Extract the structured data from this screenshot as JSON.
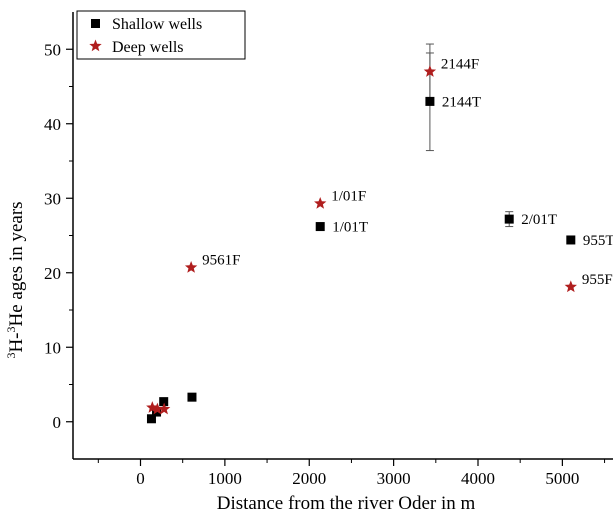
{
  "chart_data": {
    "type": "scatter",
    "xlabel": "Distance from the river Oder in m",
    "ylabel_parts": [
      "3",
      "H-",
      "3",
      "He ages in years"
    ],
    "xlim": [
      -800,
      5600
    ],
    "ylim": [
      -5,
      55
    ],
    "x_ticks": [
      0,
      1000,
      2000,
      3000,
      4000,
      5000
    ],
    "y_ticks": [
      0,
      10,
      20,
      30,
      40,
      50
    ],
    "x_tick_labels": [
      "0",
      "1000",
      "2000",
      "3000",
      "4000",
      "5000"
    ],
    "y_tick_labels": [
      "0",
      "10",
      "20",
      "30",
      "40",
      "50"
    ],
    "legend_position": "top-left",
    "colors": {
      "shallow": "#000000",
      "deep": "#b01e1e",
      "errorbar": "#555555"
    },
    "series": [
      {
        "name": "Shallow wells",
        "marker": "square",
        "points": [
          {
            "x": 130,
            "y": 0.4,
            "label": ""
          },
          {
            "x": 190,
            "y": 1.3,
            "label": ""
          },
          {
            "x": 275,
            "y": 2.7,
            "label": "",
            "err": 0.4
          },
          {
            "x": 610,
            "y": 3.3,
            "label": "",
            "err": 0.5
          },
          {
            "x": 2130,
            "y": 26.2,
            "label": "1/01T"
          },
          {
            "x": 3430,
            "y": 43.0,
            "label": "2144T",
            "err_low": 6.6,
            "err_high": 6.5
          },
          {
            "x": 4370,
            "y": 27.2,
            "label": "2/01T",
            "err": 1.0
          },
          {
            "x": 5100,
            "y": 24.4,
            "label": "955T"
          }
        ]
      },
      {
        "name": "Deep wells",
        "marker": "star",
        "points": [
          {
            "x": 140,
            "y": 1.9,
            "label": ""
          },
          {
            "x": 200,
            "y": 1.7,
            "label": ""
          },
          {
            "x": 280,
            "y": 1.7,
            "label": ""
          },
          {
            "x": 600,
            "y": 20.7,
            "label": "9561F"
          },
          {
            "x": 2130,
            "y": 29.3,
            "label": "1/01F"
          },
          {
            "x": 3430,
            "y": 47.0,
            "label": "2144F",
            "err": 3.7
          },
          {
            "x": 5100,
            "y": 18.1,
            "label": "955F"
          }
        ]
      }
    ]
  }
}
